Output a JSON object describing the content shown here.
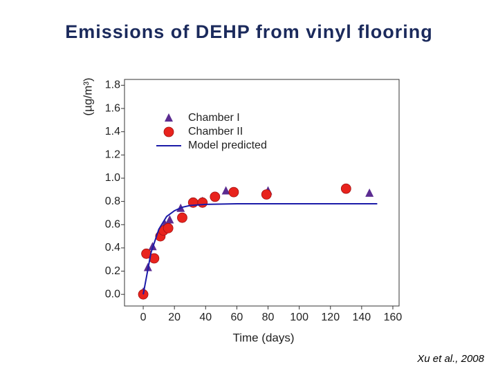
{
  "chart_data": {
    "type": "scatter",
    "title": "Emissions of DEHP from vinyl flooring",
    "xlabel": "Time (days)",
    "ylabel": "(µg/m³)",
    "source": "Xu et al., 2008",
    "xlim": [
      -12,
      164
    ],
    "ylim": [
      -0.1,
      1.85
    ],
    "xticks": [
      0,
      20,
      40,
      60,
      80,
      100,
      120,
      140,
      160
    ],
    "yticks": [
      {
        "value": 0,
        "label": "0.0"
      },
      0.2,
      0.4,
      0.6,
      0.8,
      {
        "value": 1,
        "label": "1.0"
      },
      1.2,
      1.4,
      1.6,
      1.8
    ],
    "legend": "upper-left",
    "series": [
      {
        "name": "Chamber I",
        "marker": "triangle",
        "color": "#5b2c91",
        "x": [
          0,
          3,
          6,
          14,
          17,
          24,
          38,
          53,
          80,
          145
        ],
        "values": [
          0.02,
          0.23,
          0.41,
          0.6,
          0.64,
          0.74,
          0.8,
          0.89,
          0.89,
          0.87
        ]
      },
      {
        "name": "Chamber II",
        "marker": "circle",
        "color": "#e8231d",
        "x": [
          0,
          2,
          7,
          11,
          13,
          16,
          25,
          32,
          38,
          46,
          58,
          79,
          130
        ],
        "values": [
          0.0,
          0.35,
          0.31,
          0.5,
          0.55,
          0.57,
          0.66,
          0.79,
          0.79,
          0.84,
          0.88,
          0.86,
          0.91
        ]
      },
      {
        "name": "Model predicted",
        "marker": "line",
        "color": "#1a1aa8",
        "x": [
          0,
          5,
          10,
          15,
          20,
          25,
          30,
          40,
          60,
          100,
          150
        ],
        "values": [
          0,
          0.36,
          0.56,
          0.67,
          0.72,
          0.75,
          0.765,
          0.775,
          0.78,
          0.78,
          0.78
        ]
      }
    ]
  }
}
